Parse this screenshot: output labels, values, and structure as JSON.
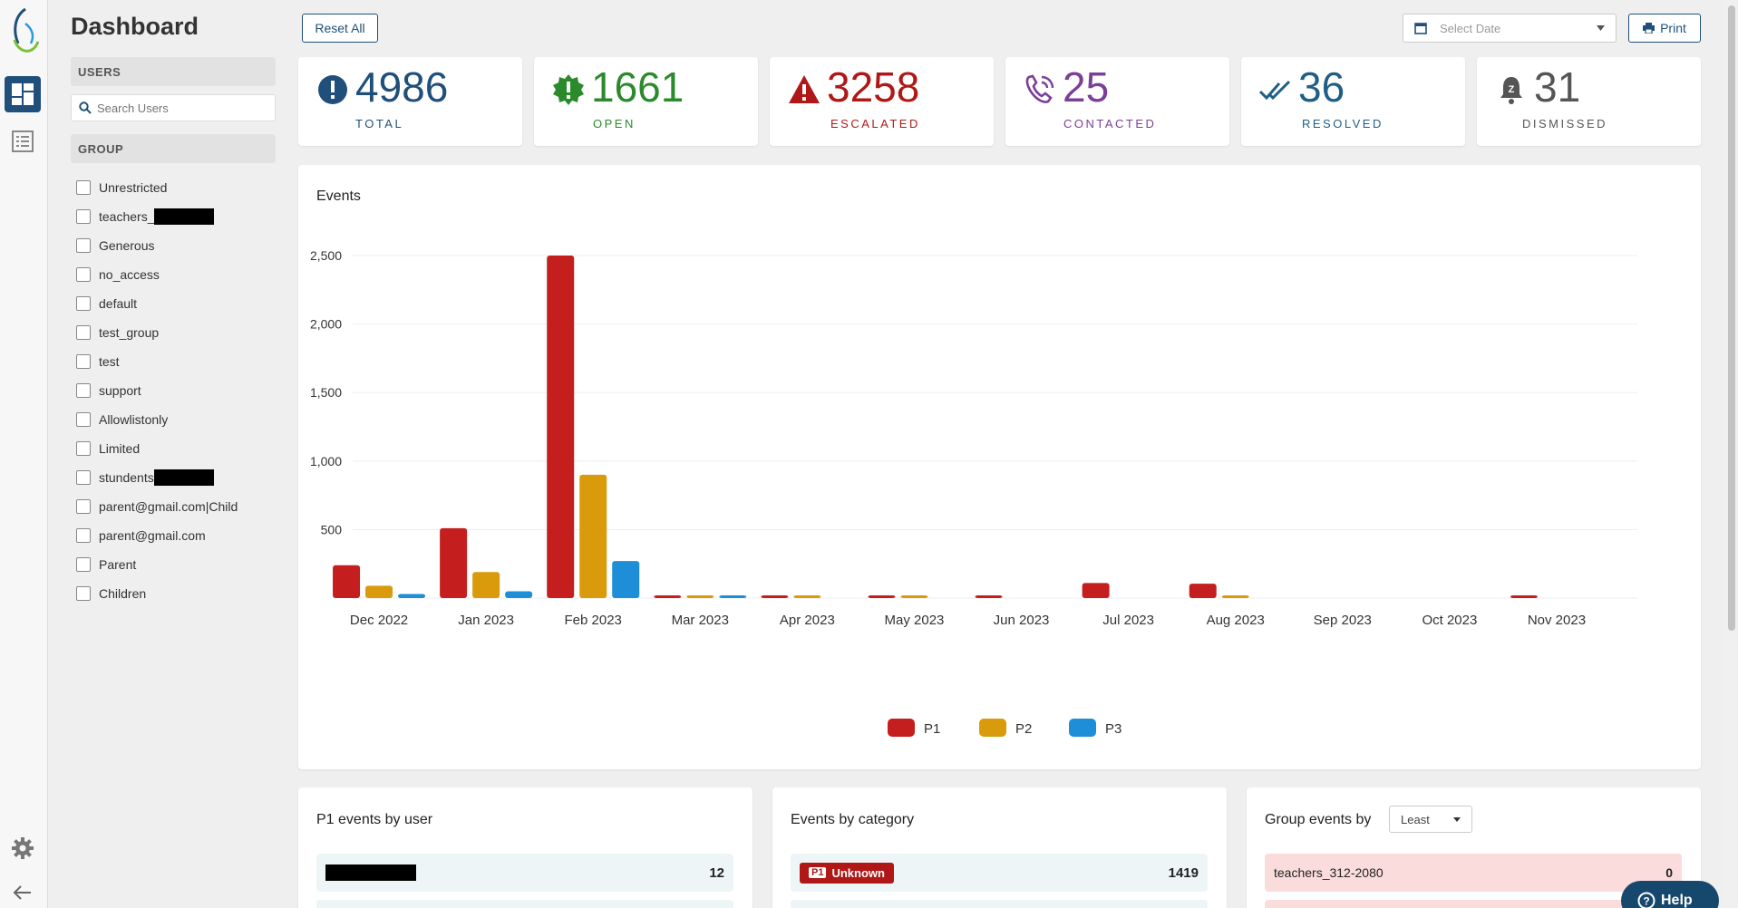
{
  "page": {
    "title": "Dashboard"
  },
  "toolbar": {
    "reset_label": "Reset All",
    "date_placeholder": "Select Date",
    "print_label": "Print"
  },
  "sidebar": {
    "users_header": "USERS",
    "search_placeholder": "Search Users",
    "group_header": "GROUP",
    "groups": [
      {
        "label": "Unrestricted"
      },
      {
        "label": "teachers_",
        "redacted": true
      },
      {
        "label": "Generous"
      },
      {
        "label": "no_access"
      },
      {
        "label": "default"
      },
      {
        "label": "test_group"
      },
      {
        "label": "test"
      },
      {
        "label": "support"
      },
      {
        "label": "Allowlistonly"
      },
      {
        "label": "Limited"
      },
      {
        "label": "stundents",
        "redacted": true
      },
      {
        "label": "parent@gmail.com|Child"
      },
      {
        "label": "parent@gmail.com"
      },
      {
        "label": "Parent"
      },
      {
        "label": "Children"
      }
    ]
  },
  "stats": [
    {
      "value": "4986",
      "label": "TOTAL",
      "color": "#1f4f7a",
      "icon": "exclamation-circle-icon"
    },
    {
      "value": "1661",
      "label": "OPEN",
      "color": "#2b8a2b",
      "icon": "badge-exclamation-icon"
    },
    {
      "value": "3258",
      "label": "ESCALATED",
      "color": "#b01818",
      "icon": "warning-triangle-icon"
    },
    {
      "value": "25",
      "label": "CONTACTED",
      "color": "#7b3f98",
      "icon": "phone-call-icon"
    },
    {
      "value": "36",
      "label": "RESOLVED",
      "color": "#1f5f86",
      "icon": "double-check-icon"
    },
    {
      "value": "31",
      "label": "DISMISSED",
      "color": "#555555",
      "icon": "bell-snooze-icon"
    }
  ],
  "events_panel": {
    "title": "Events"
  },
  "chart_data": {
    "type": "bar",
    "title": "Events",
    "categories": [
      "Dec 2022",
      "Jan 2023",
      "Feb 2023",
      "Mar 2023",
      "Apr 2023",
      "May 2023",
      "Jun 2023",
      "Jul 2023",
      "Aug 2023",
      "Sep 2023",
      "Oct 2023",
      "Nov 2023"
    ],
    "series": [
      {
        "name": "P1",
        "color": "#c41e1e",
        "values": [
          240,
          510,
          2500,
          15,
          10,
          12,
          15,
          110,
          105,
          0,
          0,
          10
        ]
      },
      {
        "name": "P2",
        "color": "#d99a0c",
        "values": [
          90,
          190,
          900,
          20,
          10,
          10,
          0,
          0,
          15,
          0,
          0,
          0
        ]
      },
      {
        "name": "P3",
        "color": "#1e8ed8",
        "values": [
          30,
          50,
          270,
          10,
          0,
          0,
          0,
          0,
          0,
          0,
          0,
          0
        ]
      }
    ],
    "yticks": [
      "2,500",
      "2,000",
      "1,500",
      "1,000",
      "500"
    ],
    "ylim": [
      0,
      2500
    ]
  },
  "p1_panel": {
    "title": "P1 events by user",
    "rows": [
      {
        "user": "",
        "value": "12"
      }
    ]
  },
  "category_panel": {
    "title": "Events by category",
    "rows": [
      {
        "badge": "P1",
        "category": "Unknown",
        "value": "1419"
      }
    ]
  },
  "group_panel": {
    "title": "Group events by",
    "sort": "Least",
    "rows": [
      {
        "group": "teachers_312-2080",
        "value": "0"
      }
    ]
  },
  "help": {
    "label": "Help"
  }
}
